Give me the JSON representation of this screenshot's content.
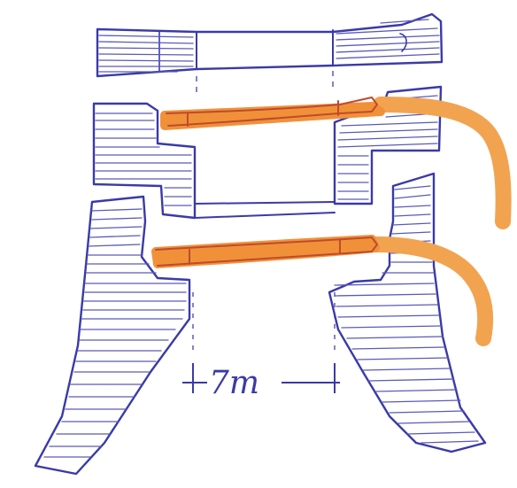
{
  "dimension": {
    "label": "7m"
  },
  "colors": {
    "ink": "#3a3aa8",
    "hatch": "#5a5ab8",
    "pipe_fill": "#f0913a",
    "pipe_edge": "#c04a2a",
    "pipe_tail": "#f2a350",
    "paper": "#ffffff"
  },
  "icons": {
    "dimension_marks": "tick-mark-icon",
    "pipes": "pipe-icon"
  }
}
